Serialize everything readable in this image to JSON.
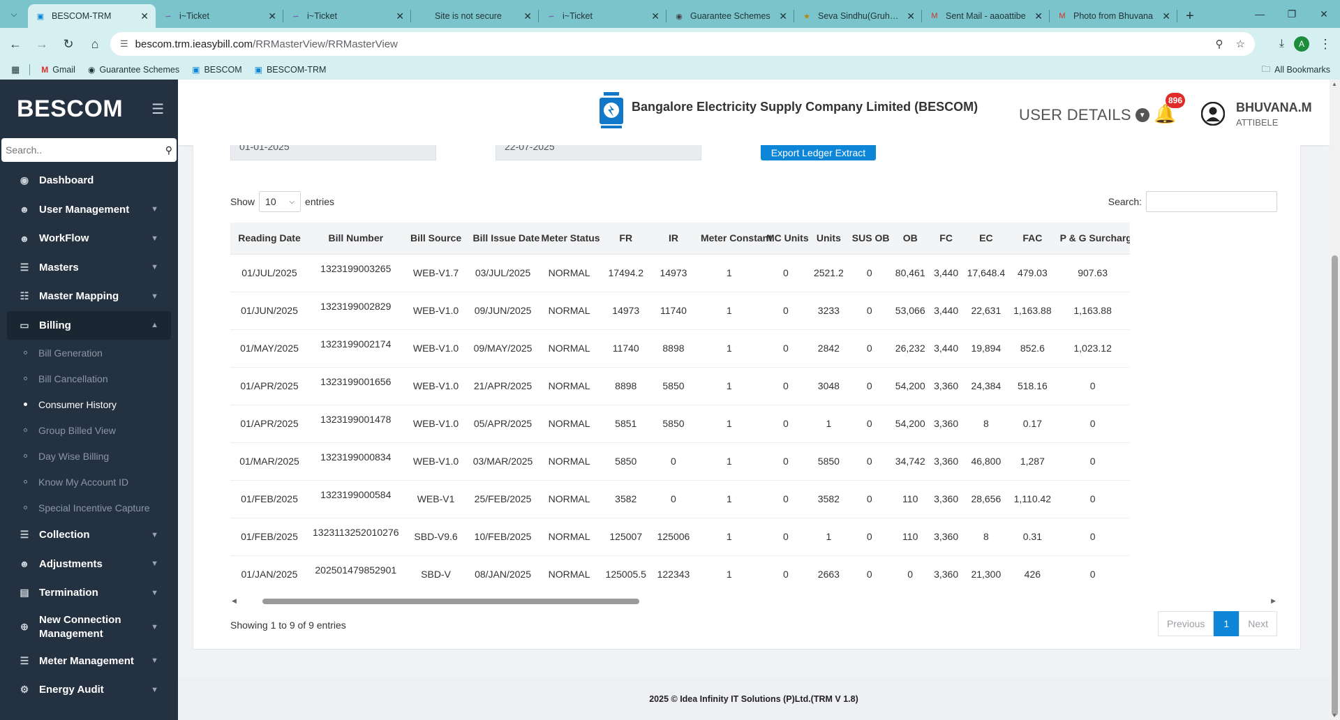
{
  "browser": {
    "tabs": [
      {
        "label": "BESCOM-TRM",
        "active": true
      },
      {
        "label": "i~Ticket"
      },
      {
        "label": "i~Ticket"
      },
      {
        "label": "Site is not secure"
      },
      {
        "label": "i~Ticket"
      },
      {
        "label": "Guarantee Schemes"
      },
      {
        "label": "Seva Sindhu(Gruha Jy"
      },
      {
        "label": "Sent Mail - aaoattibe"
      },
      {
        "label": "Photo from Bhuvana"
      }
    ],
    "url_host": "bescom.trm.ieasybill.com",
    "url_path": "/RRMasterView/RRMasterView",
    "profile_initial": "A",
    "bookmarks": [
      "Gmail",
      "Guarantee Schemes",
      "BESCOM",
      "BESCOM-TRM"
    ],
    "all_bookmarks": "All Bookmarks"
  },
  "sidebar": {
    "brand": "BESCOM",
    "search_placeholder": "Search..",
    "menu": [
      {
        "label": "Dashboard",
        "icon": "dashboard-icon"
      },
      {
        "label": "User Management",
        "icon": "user-icon"
      },
      {
        "label": "WorkFlow",
        "icon": "user-icon"
      },
      {
        "label": "Masters",
        "icon": "list-icon"
      },
      {
        "label": "Master Mapping",
        "icon": "hierarchy-icon"
      },
      {
        "label": "Billing",
        "icon": "monitor-icon"
      }
    ],
    "billing_sub": [
      "Bill Generation",
      "Bill Cancellation",
      "Consumer History",
      "Group Billed View",
      "Day Wise Billing",
      "Know My Account ID",
      "Special Incentive Capture"
    ],
    "menu_after": [
      {
        "label": "Collection",
        "icon": "list-icon"
      },
      {
        "label": "Adjustments",
        "icon": "user-icon"
      },
      {
        "label": "Termination",
        "icon": "document-icon"
      },
      {
        "label": "New Connection Management",
        "icon": "plus-circle-icon"
      },
      {
        "label": "Meter Management",
        "icon": "list-icon"
      },
      {
        "label": "Energy Audit",
        "icon": "gears-icon"
      }
    ]
  },
  "header": {
    "company": "Bangalore Electricity Supply Company Limited (BESCOM)",
    "user_details": "USER DETAILS",
    "notifications": "896",
    "user_name": "BHUVANA.M",
    "user_location": "ATTIBELE"
  },
  "filters": {
    "from_date": "01-01-2025",
    "to_date": "22-07-2025",
    "export_label": "Export Ledger Extract"
  },
  "datatable": {
    "show_label": "Show",
    "entries_value": "10",
    "entries_label": "entries",
    "search_label": "Search:",
    "columns": [
      "Reading Date",
      "Bill Number",
      "Bill Source",
      "Bill Issue Date",
      "Meter Status",
      "FR",
      "IR",
      "Meter Constant",
      "MC Units",
      "Units",
      "SUS OB",
      "OB",
      "FC",
      "EC",
      "FAC",
      "P & G Surcharge"
    ],
    "rows": [
      [
        "01/JUL/2025",
        "1323199003265",
        "WEB-V1.7",
        "03/JUL/2025",
        "NORMAL",
        "17494.2",
        "14973",
        "1",
        "0",
        "2521.2",
        "0",
        "80,461",
        "3,440",
        "17,648.4",
        "479.03",
        "907.63"
      ],
      [
        "01/JUN/2025",
        "1323199002829",
        "WEB-V1.0",
        "09/JUN/2025",
        "NORMAL",
        "14973",
        "11740",
        "1",
        "0",
        "3233",
        "0",
        "53,066",
        "3,440",
        "22,631",
        "1,163.88",
        "1,163.88"
      ],
      [
        "01/MAY/2025",
        "1323199002174",
        "WEB-V1.0",
        "09/MAY/2025",
        "NORMAL",
        "11740",
        "8898",
        "1",
        "0",
        "2842",
        "0",
        "26,232",
        "3,440",
        "19,894",
        "852.6",
        "1,023.12"
      ],
      [
        "01/APR/2025",
        "1323199001656",
        "WEB-V1.0",
        "21/APR/2025",
        "NORMAL",
        "8898",
        "5850",
        "1",
        "0",
        "3048",
        "0",
        "54,200",
        "3,360",
        "24,384",
        "518.16",
        "0"
      ],
      [
        "01/APR/2025",
        "1323199001478",
        "WEB-V1.0",
        "05/APR/2025",
        "NORMAL",
        "5851",
        "5850",
        "1",
        "0",
        "1",
        "0",
        "54,200",
        "3,360",
        "8",
        "0.17",
        "0"
      ],
      [
        "01/MAR/2025",
        "1323199000834",
        "WEB-V1.0",
        "03/MAR/2025",
        "NORMAL",
        "5850",
        "0",
        "1",
        "0",
        "5850",
        "0",
        "34,742",
        "3,360",
        "46,800",
        "1,287",
        "0"
      ],
      [
        "01/FEB/2025",
        "1323199000584",
        "WEB-V1",
        "25/FEB/2025",
        "NORMAL",
        "3582",
        "0",
        "1",
        "0",
        "3582",
        "0",
        "110",
        "3,360",
        "28,656",
        "1,110.42",
        "0"
      ],
      [
        "01/FEB/2025",
        "1323113252010276",
        "SBD-V9.6",
        "10/FEB/2025",
        "NORMAL",
        "125007",
        "125006",
        "1",
        "0",
        "1",
        "0",
        "110",
        "3,360",
        "8",
        "0.31",
        "0"
      ],
      [
        "01/JAN/2025",
        "202501479852901",
        "SBD-V",
        "08/JAN/2025",
        "NORMAL",
        "125005.5",
        "122343",
        "1",
        "0",
        "2663",
        "0",
        "0",
        "3,360",
        "21,300",
        "426",
        "0"
      ]
    ],
    "info": "Showing 1 to 9 of 9 entries",
    "prev": "Previous",
    "page": "1",
    "next": "Next"
  },
  "footer": "2025 © Idea Infinity IT Solutions (P)Ltd.(TRM V 1.8)",
  "colors": {
    "sidebar": "#243140",
    "accent": "#0d86d8",
    "badge": "#e02b2b",
    "chrome": "#7cc4cc"
  }
}
